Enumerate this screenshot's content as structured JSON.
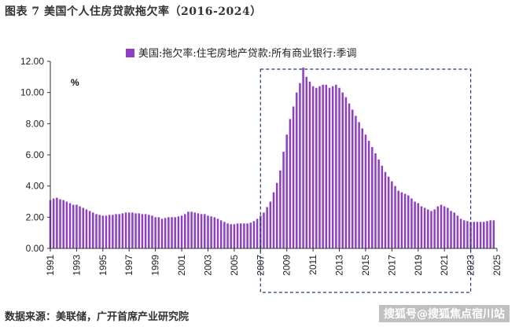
{
  "header": {
    "title": "图表 7 美国个人住房贷款拖欠率（2016-2024）"
  },
  "footer": {
    "source": "数据来源：美联储，广开首席产业研究院"
  },
  "watermark": "搜狐号@搜狐焦点宿川站",
  "chart_data": {
    "type": "bar",
    "title": "",
    "legend": {
      "label": "美国:拖欠率:住宅房地产贷款:所有商业银行:季调",
      "placement": "top-center"
    },
    "unit_label": "%",
    "ylim": [
      0,
      12
    ],
    "xlim": [
      1991,
      2025
    ],
    "y_ticks": [
      "0.00",
      "2.00",
      "4.00",
      "6.00",
      "8.00",
      "10.00",
      "12.00"
    ],
    "x_ticks": [
      "1991",
      "1993",
      "1995",
      "1997",
      "1999",
      "2001",
      "2003",
      "2005",
      "2007",
      "2009",
      "2011",
      "2013",
      "2015",
      "2017",
      "2019",
      "2021",
      "2023",
      "2025"
    ],
    "grid": false,
    "colors": {
      "bar": "#8e3fc2",
      "highlight_box": "#1f3f6e"
    },
    "highlight_range": {
      "from": 2007,
      "to": 2023
    },
    "series": [
      {
        "name": "美国:拖欠率:住宅房地产贷款:所有商业银行:季调",
        "annual_values": {
          "1991": [
            3.1,
            3.2,
            3.25,
            3.15
          ],
          "1992": [
            3.1,
            3.0,
            2.9,
            2.8
          ],
          "1993": [
            2.8,
            2.7,
            2.6,
            2.5
          ],
          "1994": [
            2.4,
            2.3,
            2.2,
            2.15
          ],
          "1995": [
            2.1,
            2.1,
            2.15,
            2.15
          ],
          "1996": [
            2.2,
            2.2,
            2.25,
            2.3
          ],
          "1997": [
            2.3,
            2.3,
            2.25,
            2.25
          ],
          "1998": [
            2.2,
            2.2,
            2.15,
            2.1
          ],
          "1999": [
            2.0,
            2.0,
            1.9,
            1.95
          ],
          "2000": [
            2.0,
            2.0,
            2.0,
            2.05
          ],
          "2001": [
            2.1,
            2.2,
            2.35,
            2.35
          ],
          "2002": [
            2.3,
            2.25,
            2.2,
            2.2
          ],
          "2003": [
            2.1,
            2.05,
            2.0,
            1.9
          ],
          "2004": [
            1.8,
            1.7,
            1.6,
            1.55
          ],
          "2005": [
            1.55,
            1.6,
            1.6,
            1.6
          ],
          "2006": [
            1.6,
            1.65,
            1.75,
            1.9
          ],
          "2007": [
            2.1,
            2.3,
            2.65,
            3.0
          ],
          "2008": [
            3.6,
            4.2,
            5.0,
            6.2
          ],
          "2009": [
            7.3,
            8.3,
            9.1,
            10.0
          ],
          "2010": [
            10.6,
            11.6,
            11.0,
            10.7
          ],
          "2011": [
            10.4,
            10.3,
            10.4,
            10.5
          ],
          "2012": [
            10.5,
            10.3,
            10.4,
            10.5
          ],
          "2013": [
            10.3,
            10.0,
            9.7,
            9.3
          ],
          "2014": [
            8.9,
            8.5,
            8.1,
            7.7
          ],
          "2015": [
            7.3,
            6.9,
            6.5,
            6.1
          ],
          "2016": [
            5.7,
            5.3,
            4.9,
            4.6
          ],
          "2017": [
            4.3,
            4.0,
            3.7,
            3.6
          ],
          "2018": [
            3.5,
            3.4,
            3.2,
            3.0
          ],
          "2019": [
            2.9,
            2.7,
            2.6,
            2.5
          ],
          "2020": [
            2.4,
            2.5,
            2.7,
            2.8
          ],
          "2021": [
            2.7,
            2.6,
            2.4,
            2.3
          ],
          "2022": [
            2.1,
            1.9,
            1.8,
            1.75
          ],
          "2023": [
            1.7,
            1.7,
            1.7,
            1.7
          ],
          "2024": [
            1.7,
            1.75,
            1.8,
            1.8
          ]
        }
      }
    ]
  }
}
